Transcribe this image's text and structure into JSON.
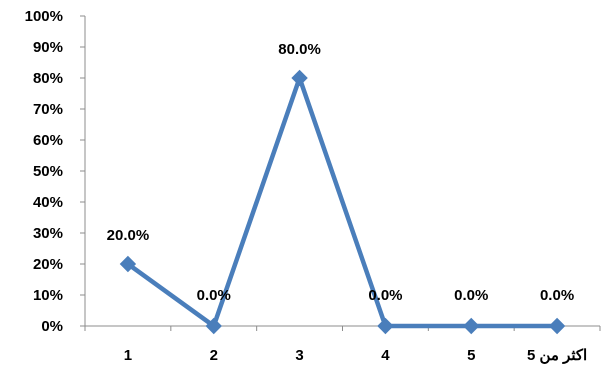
{
  "chart_data": {
    "type": "line",
    "title": "",
    "xlabel": "",
    "ylabel": "",
    "categories": [
      "1",
      "2",
      "3",
      "4",
      "5",
      "اكثر من 5"
    ],
    "values": [
      20.0,
      0.0,
      80.0,
      0.0,
      0.0,
      0.0
    ],
    "data_labels": [
      "20.0%",
      "0.0%",
      "80.0%",
      "0.0%",
      "0.0%",
      "0.0%"
    ],
    "ylim": [
      0,
      100
    ],
    "y_ticks": [
      "0%",
      "10%",
      "20%",
      "30%",
      "40%",
      "50%",
      "60%",
      "70%",
      "80%",
      "90%",
      "100%"
    ],
    "grid": false,
    "legend": "none",
    "marker": "diamond",
    "colors": {
      "series": "#4a7ebb",
      "axis": "#8c8c8c",
      "text": "#000000"
    }
  }
}
